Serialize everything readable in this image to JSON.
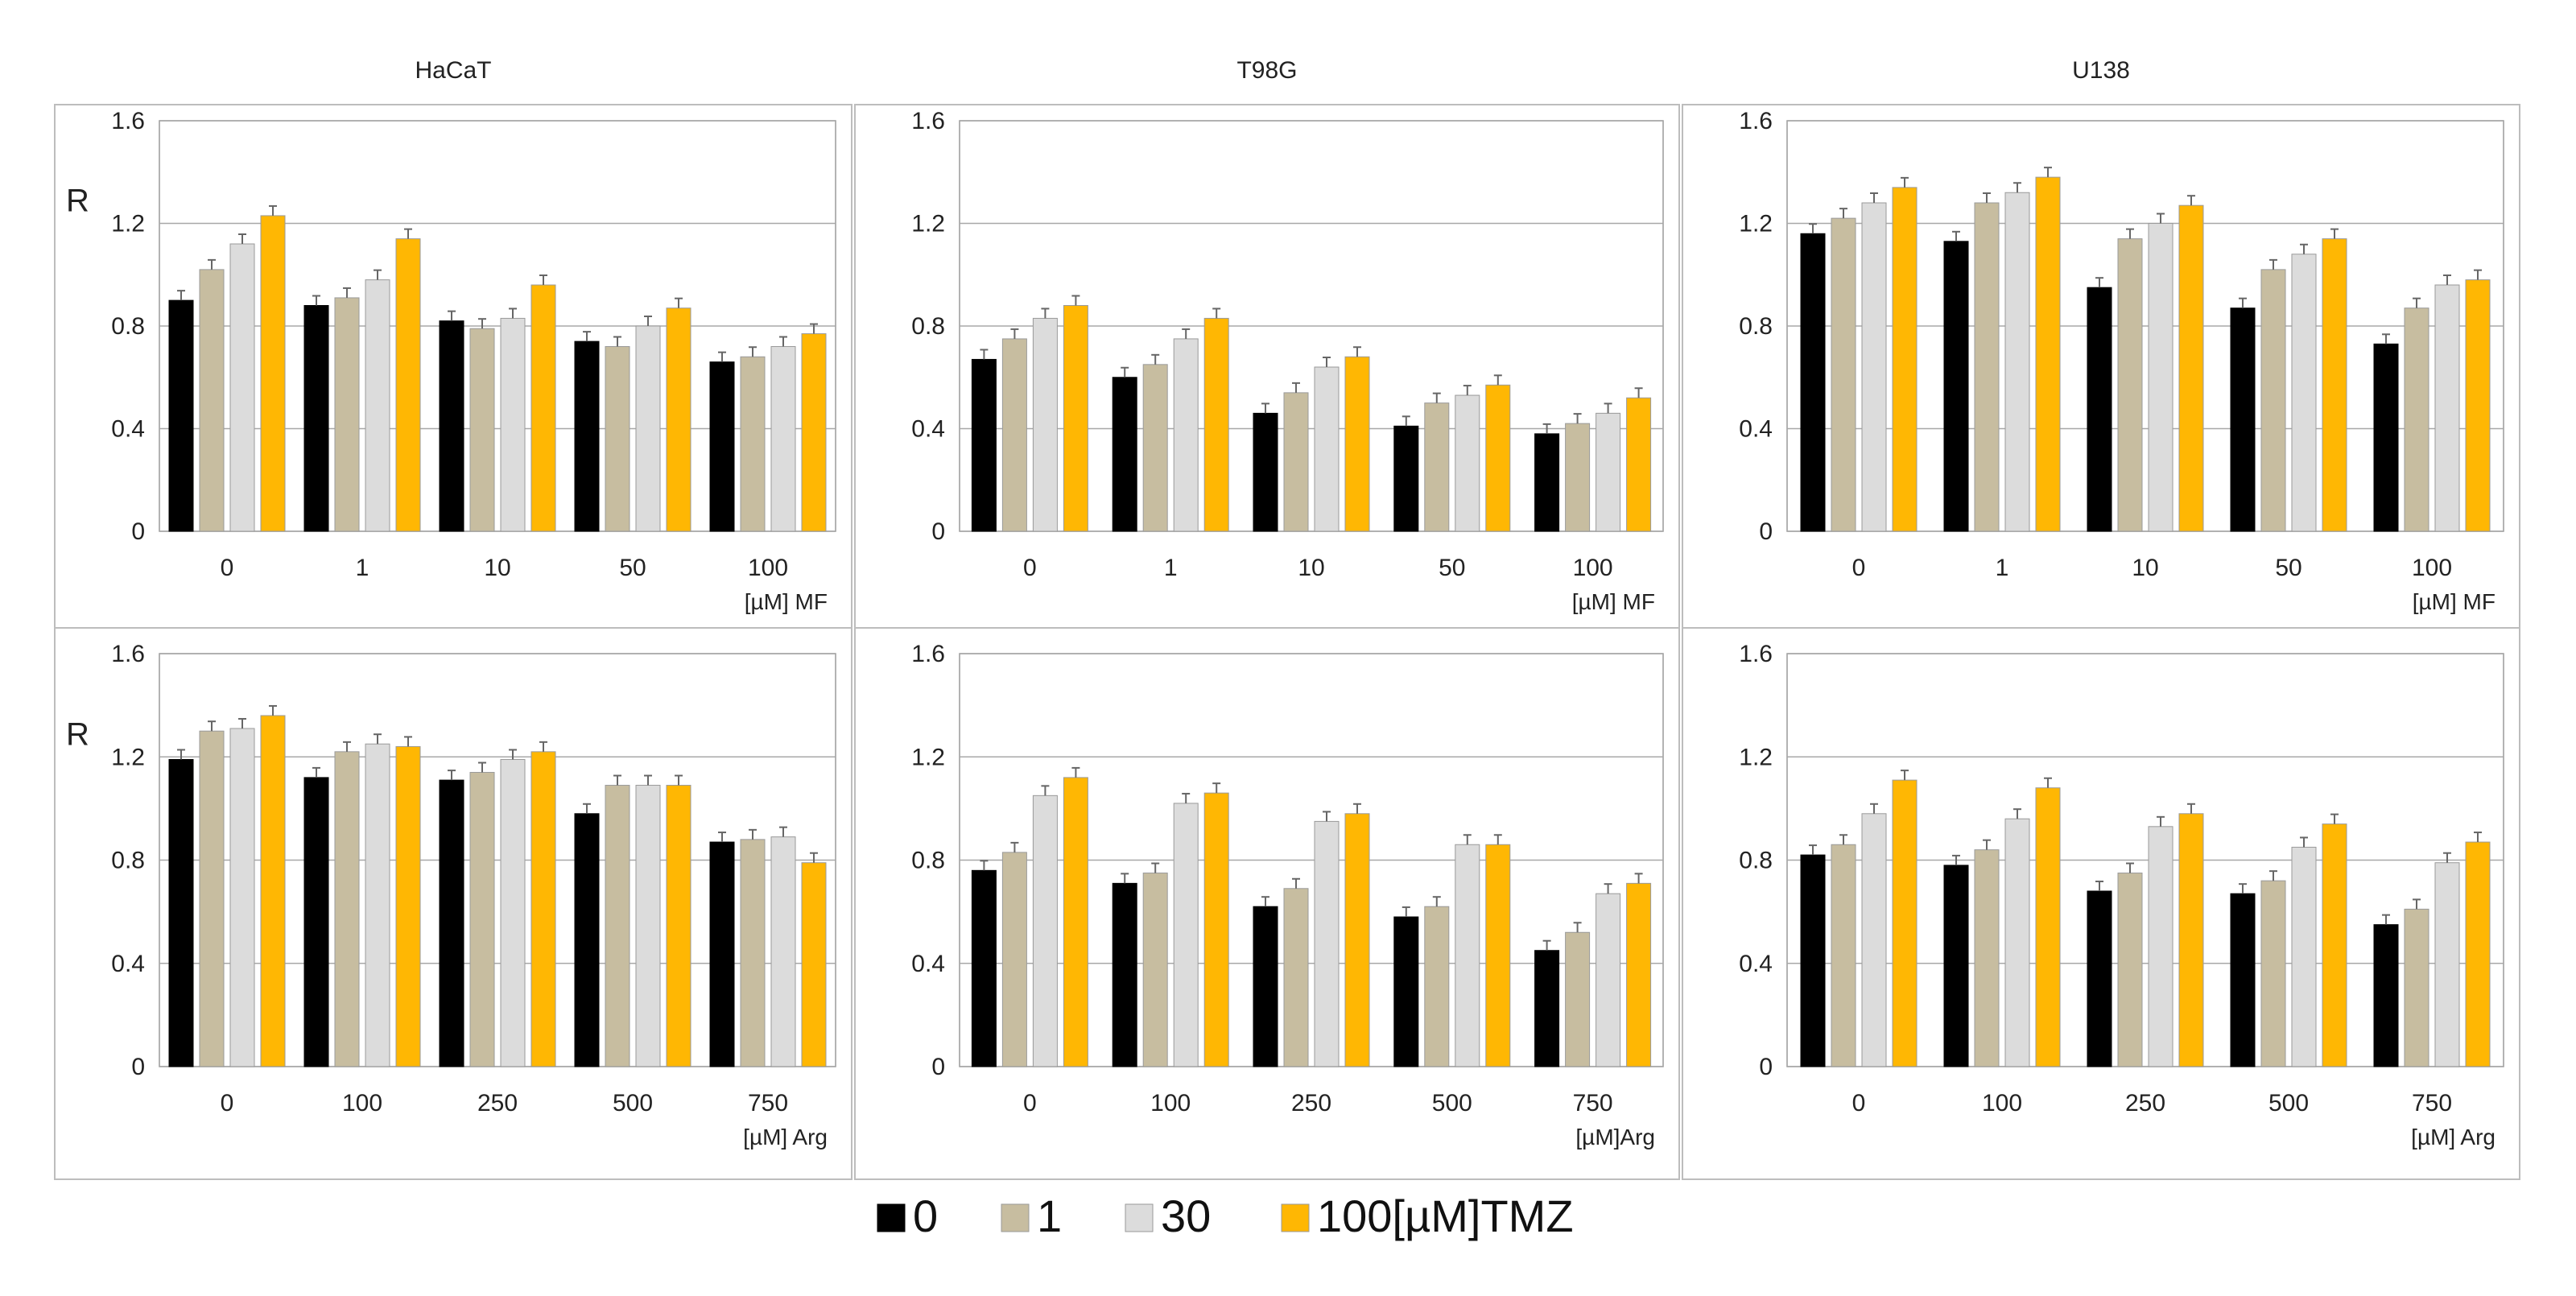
{
  "legend": {
    "items": [
      {
        "label": "0",
        "color": "#000000"
      },
      {
        "label": "1",
        "color": "#c7bda0"
      },
      {
        "label": "30",
        "color": "#dcdcdc"
      },
      {
        "label": "100[µM]TMZ",
        "color": "#ffb703"
      }
    ]
  },
  "chart_data": [
    {
      "type": "bar",
      "title": "HaCaT",
      "ylabel": "R",
      "xlabel": "[µM] MF",
      "categories": [
        "0",
        "1",
        "10",
        "50",
        "100"
      ],
      "ylim": [
        0,
        1.6
      ],
      "yticks": [
        "0",
        "0.4",
        "0.8",
        "1.2",
        "1.6"
      ],
      "series": [
        {
          "name": "0",
          "values": [
            0.9,
            0.88,
            0.82,
            0.74,
            0.66
          ]
        },
        {
          "name": "1",
          "values": [
            1.02,
            0.91,
            0.79,
            0.72,
            0.68
          ]
        },
        {
          "name": "30",
          "values": [
            1.12,
            0.98,
            0.83,
            0.8,
            0.72
          ]
        },
        {
          "name": "100[µM]TMZ",
          "values": [
            1.23,
            1.14,
            0.96,
            0.87,
            0.77
          ]
        }
      ]
    },
    {
      "type": "bar",
      "title": "T98G",
      "ylabel": "",
      "xlabel": "[µM] MF",
      "categories": [
        "0",
        "1",
        "10",
        "50",
        "100"
      ],
      "ylim": [
        0,
        1.6
      ],
      "yticks": [
        "0",
        "0.4",
        "0.8",
        "1.2",
        "1.6"
      ],
      "series": [
        {
          "name": "0",
          "values": [
            0.67,
            0.6,
            0.46,
            0.41,
            0.38
          ]
        },
        {
          "name": "1",
          "values": [
            0.75,
            0.65,
            0.54,
            0.5,
            0.42
          ]
        },
        {
          "name": "30",
          "values": [
            0.83,
            0.75,
            0.64,
            0.53,
            0.46
          ]
        },
        {
          "name": "100[µM]TMZ",
          "values": [
            0.88,
            0.83,
            0.68,
            0.57,
            0.52
          ]
        }
      ]
    },
    {
      "type": "bar",
      "title": "U138",
      "ylabel": "",
      "xlabel": "[µM] MF",
      "categories": [
        "0",
        "1",
        "10",
        "50",
        "100"
      ],
      "ylim": [
        0,
        1.6
      ],
      "yticks": [
        "0",
        "0.4",
        "0.8",
        "1.2",
        "1.6"
      ],
      "series": [
        {
          "name": "0",
          "values": [
            1.16,
            1.13,
            0.95,
            0.87,
            0.73
          ]
        },
        {
          "name": "1",
          "values": [
            1.22,
            1.28,
            1.14,
            1.02,
            0.87
          ]
        },
        {
          "name": "30",
          "values": [
            1.28,
            1.32,
            1.2,
            1.08,
            0.96
          ]
        },
        {
          "name": "100[µM]TMZ",
          "values": [
            1.34,
            1.38,
            1.27,
            1.14,
            0.98
          ]
        }
      ]
    },
    {
      "type": "bar",
      "title": "",
      "ylabel": "R",
      "xlabel": "[µM] Arg",
      "categories": [
        "0",
        "100",
        "250",
        "500",
        "750"
      ],
      "ylim": [
        0,
        1.6
      ],
      "yticks": [
        "0",
        "0.4",
        "0.8",
        "1.2",
        "1.6"
      ],
      "series": [
        {
          "name": "0",
          "values": [
            1.19,
            1.12,
            1.11,
            0.98,
            0.87
          ]
        },
        {
          "name": "1",
          "values": [
            1.3,
            1.22,
            1.14,
            1.09,
            0.88
          ]
        },
        {
          "name": "30",
          "values": [
            1.31,
            1.25,
            1.19,
            1.09,
            0.89
          ]
        },
        {
          "name": "100[µM]TMZ",
          "values": [
            1.36,
            1.24,
            1.22,
            1.09,
            0.79
          ]
        }
      ]
    },
    {
      "type": "bar",
      "title": "",
      "ylabel": "",
      "xlabel": "[µM]Arg",
      "categories": [
        "0",
        "100",
        "250",
        "500",
        "750"
      ],
      "ylim": [
        0,
        1.6
      ],
      "yticks": [
        "0",
        "0.4",
        "0.8",
        "1.2",
        "1.6"
      ],
      "series": [
        {
          "name": "0",
          "values": [
            0.76,
            0.71,
            0.62,
            0.58,
            0.45
          ]
        },
        {
          "name": "1",
          "values": [
            0.83,
            0.75,
            0.69,
            0.62,
            0.52
          ]
        },
        {
          "name": "30",
          "values": [
            1.05,
            1.02,
            0.95,
            0.86,
            0.67
          ]
        },
        {
          "name": "100[µM]TMZ",
          "values": [
            1.12,
            1.06,
            0.98,
            0.86,
            0.71
          ]
        }
      ]
    },
    {
      "type": "bar",
      "title": "",
      "ylabel": "",
      "xlabel": "[µM] Arg",
      "categories": [
        "0",
        "100",
        "250",
        "500",
        "750"
      ],
      "ylim": [
        0,
        1.6
      ],
      "yticks": [
        "0",
        "0.4",
        "0.8",
        "1.2",
        "1.6"
      ],
      "series": [
        {
          "name": "0",
          "values": [
            0.82,
            0.78,
            0.68,
            0.67,
            0.55
          ]
        },
        {
          "name": "1",
          "values": [
            0.86,
            0.84,
            0.75,
            0.72,
            0.61
          ]
        },
        {
          "name": "30",
          "values": [
            0.98,
            0.96,
            0.93,
            0.85,
            0.79
          ]
        },
        {
          "name": "100[µM]TMZ",
          "values": [
            1.11,
            1.08,
            0.98,
            0.94,
            0.87
          ]
        }
      ]
    }
  ]
}
